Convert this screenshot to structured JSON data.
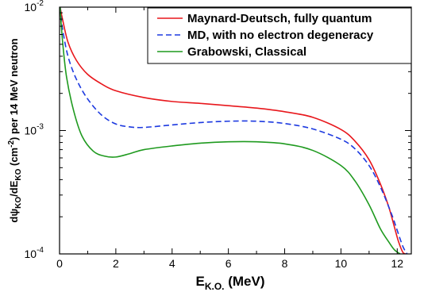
{
  "chart_data": {
    "type": "line",
    "title": "",
    "xlabel": {
      "main": "E",
      "sub": "K.O.",
      "unit": " (MeV)"
    },
    "ylabel": {
      "p1": "dψ",
      "s1": "KO",
      "p2": "/dE",
      "s2": "KO",
      "p3": " (cm",
      "sup": "-2",
      "p4": ") per 14 MeV neutron"
    },
    "xlim": [
      0,
      12.5
    ],
    "ylim": [
      0.0001,
      0.01
    ],
    "yscale": "log",
    "xticks": [
      "0",
      "2",
      "4",
      "6",
      "8",
      "10",
      "12"
    ],
    "yticks": [
      {
        "base": "10",
        "exp": "-4"
      },
      {
        "base": "10",
        "exp": "-3"
      },
      {
        "base": "10",
        "exp": "-2"
      }
    ],
    "grid": false,
    "legend_position": "top-right",
    "series": [
      {
        "name": "Maynard-Deutsch, fully quantum",
        "color": "#e8171c",
        "dash": "solid",
        "x": [
          0.02,
          0.1,
          0.3,
          0.6,
          1.0,
          1.5,
          2.0,
          3.0,
          4.0,
          5.0,
          6.0,
          7.0,
          8.0,
          9.0,
          10.0,
          10.5,
          11.0,
          11.4,
          11.7,
          11.9,
          12.05,
          12.2,
          12.3
        ],
        "y": [
          0.01,
          0.0081,
          0.0052,
          0.0037,
          0.00285,
          0.00238,
          0.0021,
          0.00185,
          0.00172,
          0.00166,
          0.00159,
          0.00152,
          0.00142,
          0.00128,
          0.00102,
          0.00082,
          0.00058,
          0.00037,
          0.00024,
          0.000165,
          0.000125,
          0.000103,
          0.0001
        ]
      },
      {
        "name": "MD, with no electron degeneracy",
        "color": "#1d3ae0",
        "dash": "dashed",
        "x": [
          0.02,
          0.1,
          0.3,
          0.6,
          1.0,
          1.5,
          2.0,
          2.5,
          3.0,
          4.0,
          5.0,
          6.0,
          7.0,
          8.0,
          9.0,
          10.0,
          10.5,
          11.0,
          11.4,
          11.8,
          12.0,
          12.2,
          12.35
        ],
        "y": [
          0.01,
          0.0068,
          0.004,
          0.0026,
          0.0018,
          0.00133,
          0.00113,
          0.00107,
          0.00106,
          0.00111,
          0.00116,
          0.00119,
          0.00119,
          0.00114,
          0.00103,
          0.00085,
          0.00071,
          0.00052,
          0.00035,
          0.00021,
          0.000155,
          0.000115,
          0.0001
        ]
      },
      {
        "name": "Grabowski, Classical",
        "color": "#1f9a1f",
        "dash": "solid",
        "x": [
          0.02,
          0.1,
          0.25,
          0.5,
          0.8,
          1.2,
          1.6,
          2.0,
          2.5,
          3.0,
          4.0,
          5.0,
          6.0,
          7.0,
          8.0,
          9.0,
          10.0,
          10.5,
          11.0,
          11.4,
          11.7,
          11.9,
          12.1
        ],
        "y": [
          0.01,
          0.0055,
          0.0027,
          0.00145,
          0.0009,
          0.00068,
          0.00062,
          0.00061,
          0.00065,
          0.0007,
          0.00075,
          0.00079,
          0.00081,
          0.00081,
          0.00078,
          0.00069,
          0.00052,
          0.00039,
          0.00025,
          0.00016,
          0.000125,
          0.000108,
          0.0001
        ]
      }
    ]
  }
}
